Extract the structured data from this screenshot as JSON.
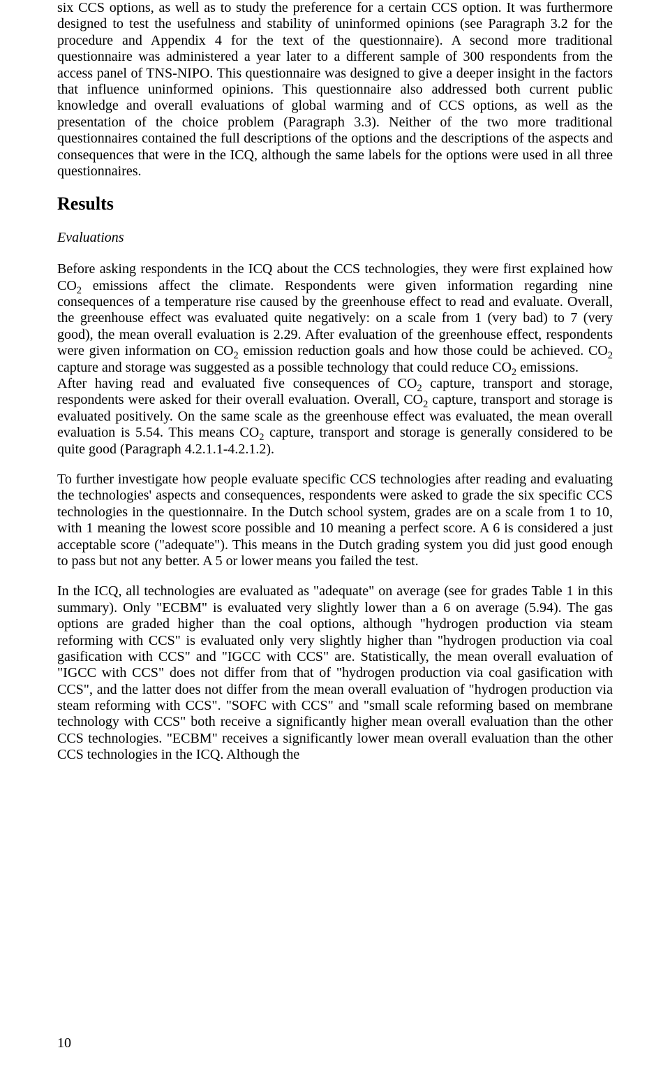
{
  "page": {
    "number": "10",
    "paragraphs": {
      "p1": "six CCS options, as well as to study the preference for a certain CCS option. It was furthermore designed to test the usefulness and stability of uninformed opinions (see Paragraph 3.2 for the procedure and Appendix 4 for the text of the questionnaire). A second more traditional questionnaire was administered a year later to a different sample of 300 respondents from the access panel of TNS-NIPO. This questionnaire was designed to give a deeper insight in the factors that influence uninformed opinions. This questionnaire also addressed both current public knowledge and overall evaluations of global warming and of CCS options, as well as the presentation of the choice problem (Paragraph 3.3). Neither of the two more traditional questionnaires contained the full descriptions of the options and the descriptions of the aspects and consequences that were in the ICQ, although the same labels for the options were used in all three questionnaires.",
      "results_heading": "Results",
      "evaluations_heading": "Evaluations",
      "p2_a": "Before asking respondents in the ICQ about the CCS technologies, they were first explained how CO",
      "p2_b": " emissions affect the climate. Respondents were given information regarding nine consequences of a temperature rise caused by the greenhouse effect to read and evaluate. Overall, the greenhouse effect was evaluated quite negatively: on a scale from 1 (very bad) to 7 (very good), the mean overall evaluation is 2.29. After evaluation of the greenhouse effect, respondents were given information on CO",
      "p2_c": " emission reduction goals and how those could be achieved. CO",
      "p2_d": " capture and storage was suggested as a possible technology that could reduce CO",
      "p2_e": " emissions.",
      "p3_a": "After having read and evaluated five consequences of CO",
      "p3_b": " capture, transport and storage, respondents were asked for their overall evaluation. Overall, CO",
      "p3_c": " capture, transport and storage is evaluated positively. On the same scale as the greenhouse effect was evaluated, the mean overall evaluation is 5.54. This means CO",
      "p3_d": " capture, transport and storage is generally considered to be quite good (Paragraph 4.2.1.1-4.2.1.2).",
      "p4": "To further investigate how people evaluate specific CCS technologies after reading and evaluating the technologies' aspects and consequences, respondents were asked to grade the six specific CCS technologies in the questionnaire. In the Dutch school system, grades are on a scale from 1 to 10, with 1 meaning the lowest score possible and 10 meaning a perfect score. A 6 is considered a just acceptable score (\"adequate\"). This means in the Dutch grading system you did just good enough to pass but not any better. A 5 or lower means you failed the test.",
      "p5": "In the ICQ, all technologies are evaluated as \"adequate\" on average (see for grades Table 1 in this summary). Only \"ECBM\" is evaluated very slightly lower than a 6 on average (5.94). The gas options are graded higher than the coal options, although \"hydrogen production via steam reforming with CCS\" is evaluated only very slightly higher than \"hydrogen production via coal gasification with CCS\" and \"IGCC with CCS\" are. Statistically, the mean overall evaluation of \"IGCC with CCS\" does not differ from that of \"hydrogen production via coal gasification with CCS\", and the latter does not differ from the mean overall evaluation of \"hydrogen production via steam reforming with CCS\". \"SOFC with CCS\" and \"small scale reforming based on membrane technology with CCS\" both receive a significantly higher mean overall evaluation than the other CCS technologies. \"ECBM\" receives a significantly lower mean overall evaluation than the other CCS technologies in the ICQ. Although the",
      "co2_sub": "2"
    }
  }
}
